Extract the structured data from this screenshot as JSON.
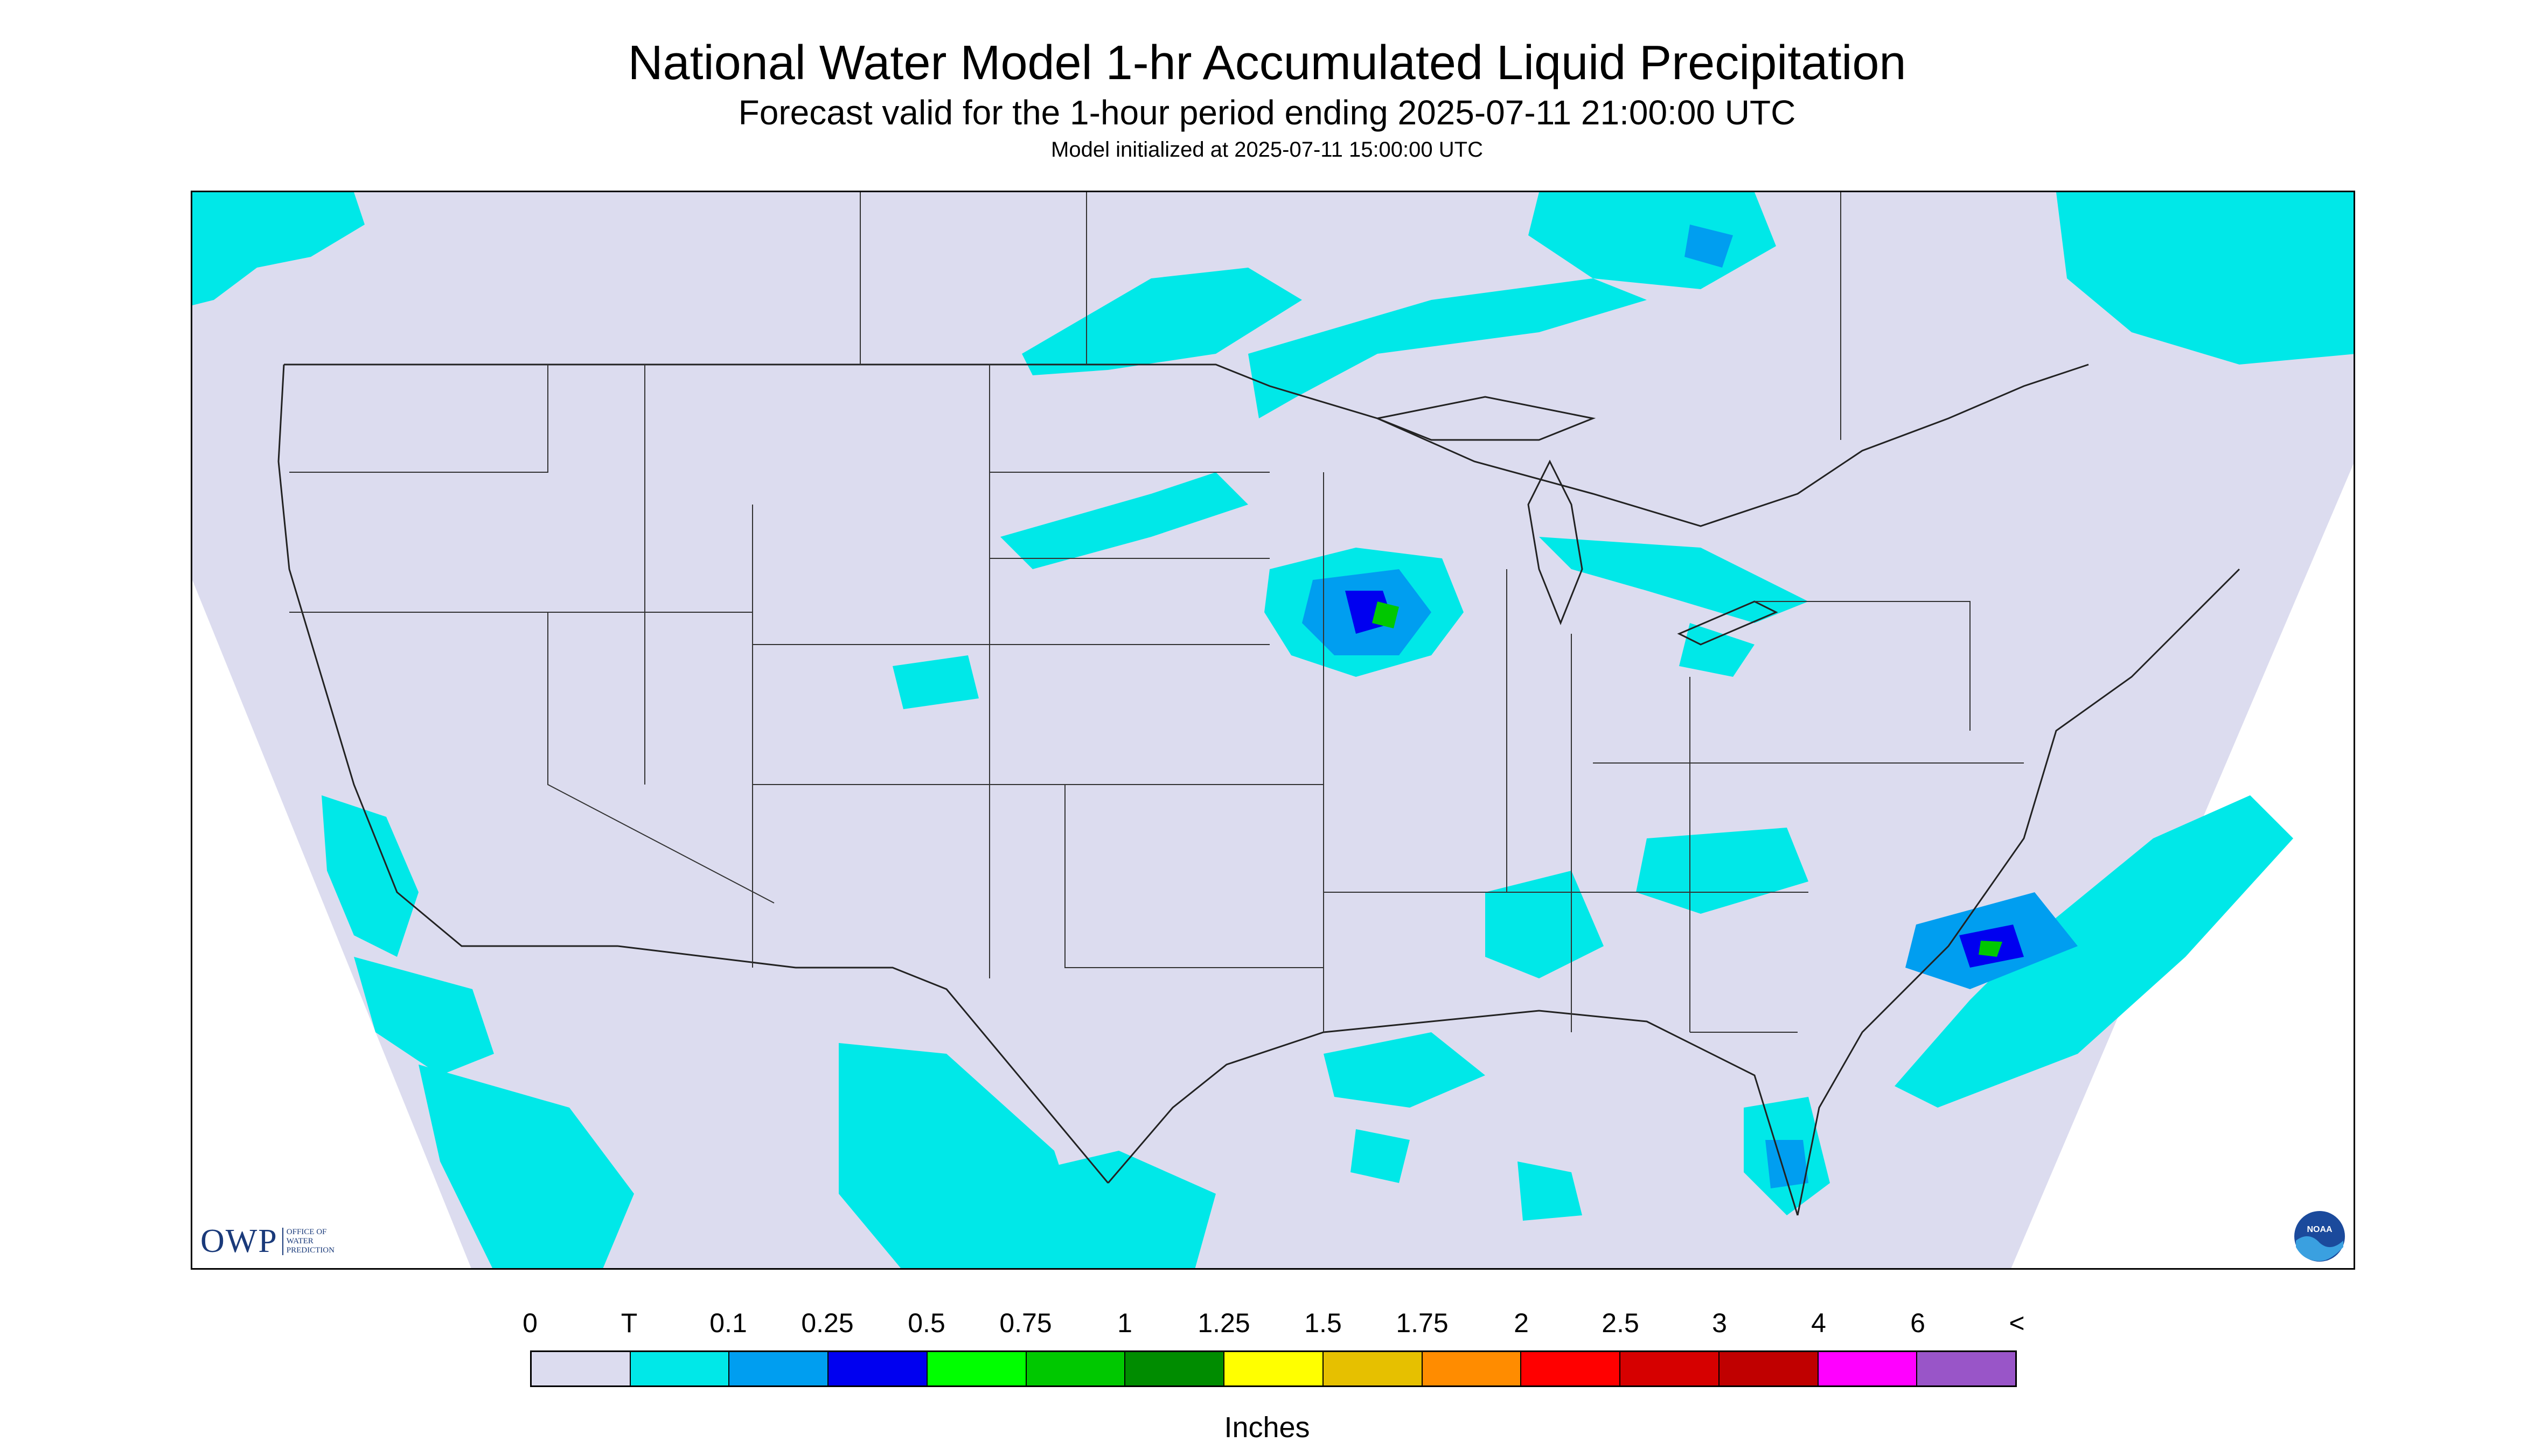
{
  "title": "National Water Model 1-hr Accumulated Liquid Precipitation",
  "subtitle": "Forecast valid for the 1-hour period ending 2025-07-11 21:00:00 UTC",
  "init_line": "Model initialized at 2025-07-11 15:00:00 UTC",
  "logo_owp": {
    "text": "OWP",
    "sub": [
      "OFFICE OF",
      "WATER",
      "PREDICTION"
    ]
  },
  "logo_noaa": {
    "text": "NOAA"
  },
  "legend": {
    "unit": "Inches",
    "labels": [
      "0",
      "T",
      "0.1",
      "0.25",
      "0.5",
      "0.75",
      "1",
      "1.25",
      "1.5",
      "1.75",
      "2",
      "2.5",
      "3",
      "4",
      "6",
      "<"
    ],
    "colors": [
      "#dcdcef",
      "#00e8e8",
      "#009ef0",
      "#0000f0",
      "#00ff00",
      "#00c800",
      "#008c00",
      "#ffff00",
      "#e6c000",
      "#ff8c00",
      "#ff0000",
      "#d60000",
      "#c00000",
      "#ff00ff",
      "#9955c8"
    ]
  },
  "colors": {
    "background": "#dcdcef",
    "trace": "#00e8e8",
    "light": "#009ef0",
    "moderate": "#0000f0",
    "heavy": "#00ff00",
    "heavier": "#00c800"
  }
}
